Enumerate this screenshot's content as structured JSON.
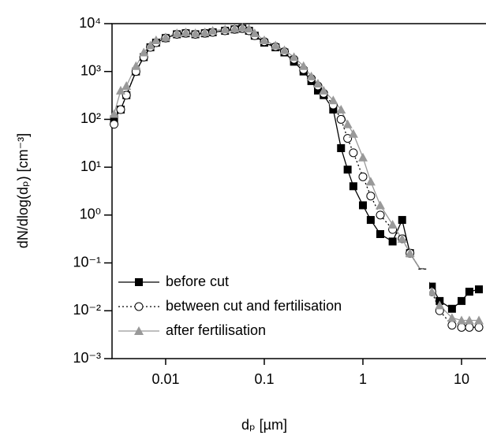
{
  "chart_data": {
    "type": "line",
    "xlabel": "dₚ [µm]",
    "ylabel": "dN/dlog(dₚ) [cm⁻³]",
    "xscale": "log",
    "yscale": "log",
    "xlim": [
      0.00286,
      17.7
    ],
    "ylim": [
      0.001,
      10000
    ],
    "xticks": [
      0.01,
      0.1,
      1,
      10
    ],
    "yticks": [
      {
        "value": 0.001,
        "label": "10⁻³"
      },
      {
        "value": 0.01,
        "label": "10⁻²"
      },
      {
        "value": 0.1,
        "label": "10⁻¹"
      },
      {
        "value": 1,
        "label": "10⁰"
      },
      {
        "value": 10,
        "label": "10¹"
      },
      {
        "value": 100,
        "label": "10²"
      },
      {
        "value": 1000,
        "label": "10³"
      },
      {
        "value": 10000,
        "label": "10⁴"
      }
    ],
    "legend": "lower left",
    "x": [
      0.003,
      0.0035,
      0.004,
      0.005,
      0.006,
      0.007,
      0.008,
      0.01,
      0.013,
      0.016,
      0.02,
      0.025,
      0.03,
      0.04,
      0.05,
      0.06,
      0.07,
      0.08,
      0.1,
      0.13,
      0.16,
      0.2,
      0.25,
      0.3,
      0.35,
      0.4,
      0.5,
      0.6,
      0.7,
      0.8,
      1,
      1.2,
      1.5,
      2,
      2.5,
      3,
      4,
      5,
      6,
      8,
      10,
      12,
      15
    ],
    "series": [
      {
        "name": "before cut",
        "color": "#000000",
        "marker": "square",
        "dash": "solid",
        "values": [
          100,
          160,
          320,
          1000,
          2000,
          3200,
          4000,
          5000,
          6000,
          6300,
          6000,
          6300,
          6600,
          7100,
          7600,
          7900,
          7100,
          5600,
          4000,
          3200,
          2500,
          1600,
          1000,
          630,
          400,
          320,
          160,
          25,
          8.9,
          4,
          1.6,
          0.79,
          0.4,
          0.28,
          0.79,
          0.16,
          0.063,
          0.032,
          0.016,
          0.011,
          0.016,
          0.025,
          0.028
        ]
      },
      {
        "name": "between cut and fertilisation",
        "color": "#000000",
        "marker": "circle",
        "dash": "dotted",
        "values": [
          79,
          160,
          320,
          1000,
          2000,
          3200,
          4000,
          5000,
          6000,
          6300,
          6000,
          6300,
          6600,
          7100,
          7600,
          7900,
          7100,
          5600,
          4200,
          3300,
          2600,
          1800,
          1100,
          710,
          500,
          350,
          200,
          100,
          40,
          20,
          6.3,
          2.5,
          1,
          0.5,
          0.32,
          0.16,
          0.063,
          0.025,
          0.01,
          0.005,
          0.0045,
          0.0045,
          0.0045
        ]
      },
      {
        "name": "after fertilisation",
        "color": "#999999",
        "marker": "triangle",
        "dash": "solid",
        "values": [
          130,
          400,
          500,
          1300,
          2500,
          3500,
          4500,
          5200,
          6300,
          6600,
          6300,
          6600,
          7100,
          7600,
          7900,
          8300,
          7900,
          6300,
          4500,
          3500,
          2800,
          2000,
          1300,
          790,
          560,
          400,
          250,
          160,
          79,
          50,
          16,
          5,
          1.6,
          0.63,
          0.32,
          0.16,
          0.063,
          0.025,
          0.013,
          0.0071,
          0.0063,
          0.0063,
          0.0063
        ]
      }
    ]
  }
}
